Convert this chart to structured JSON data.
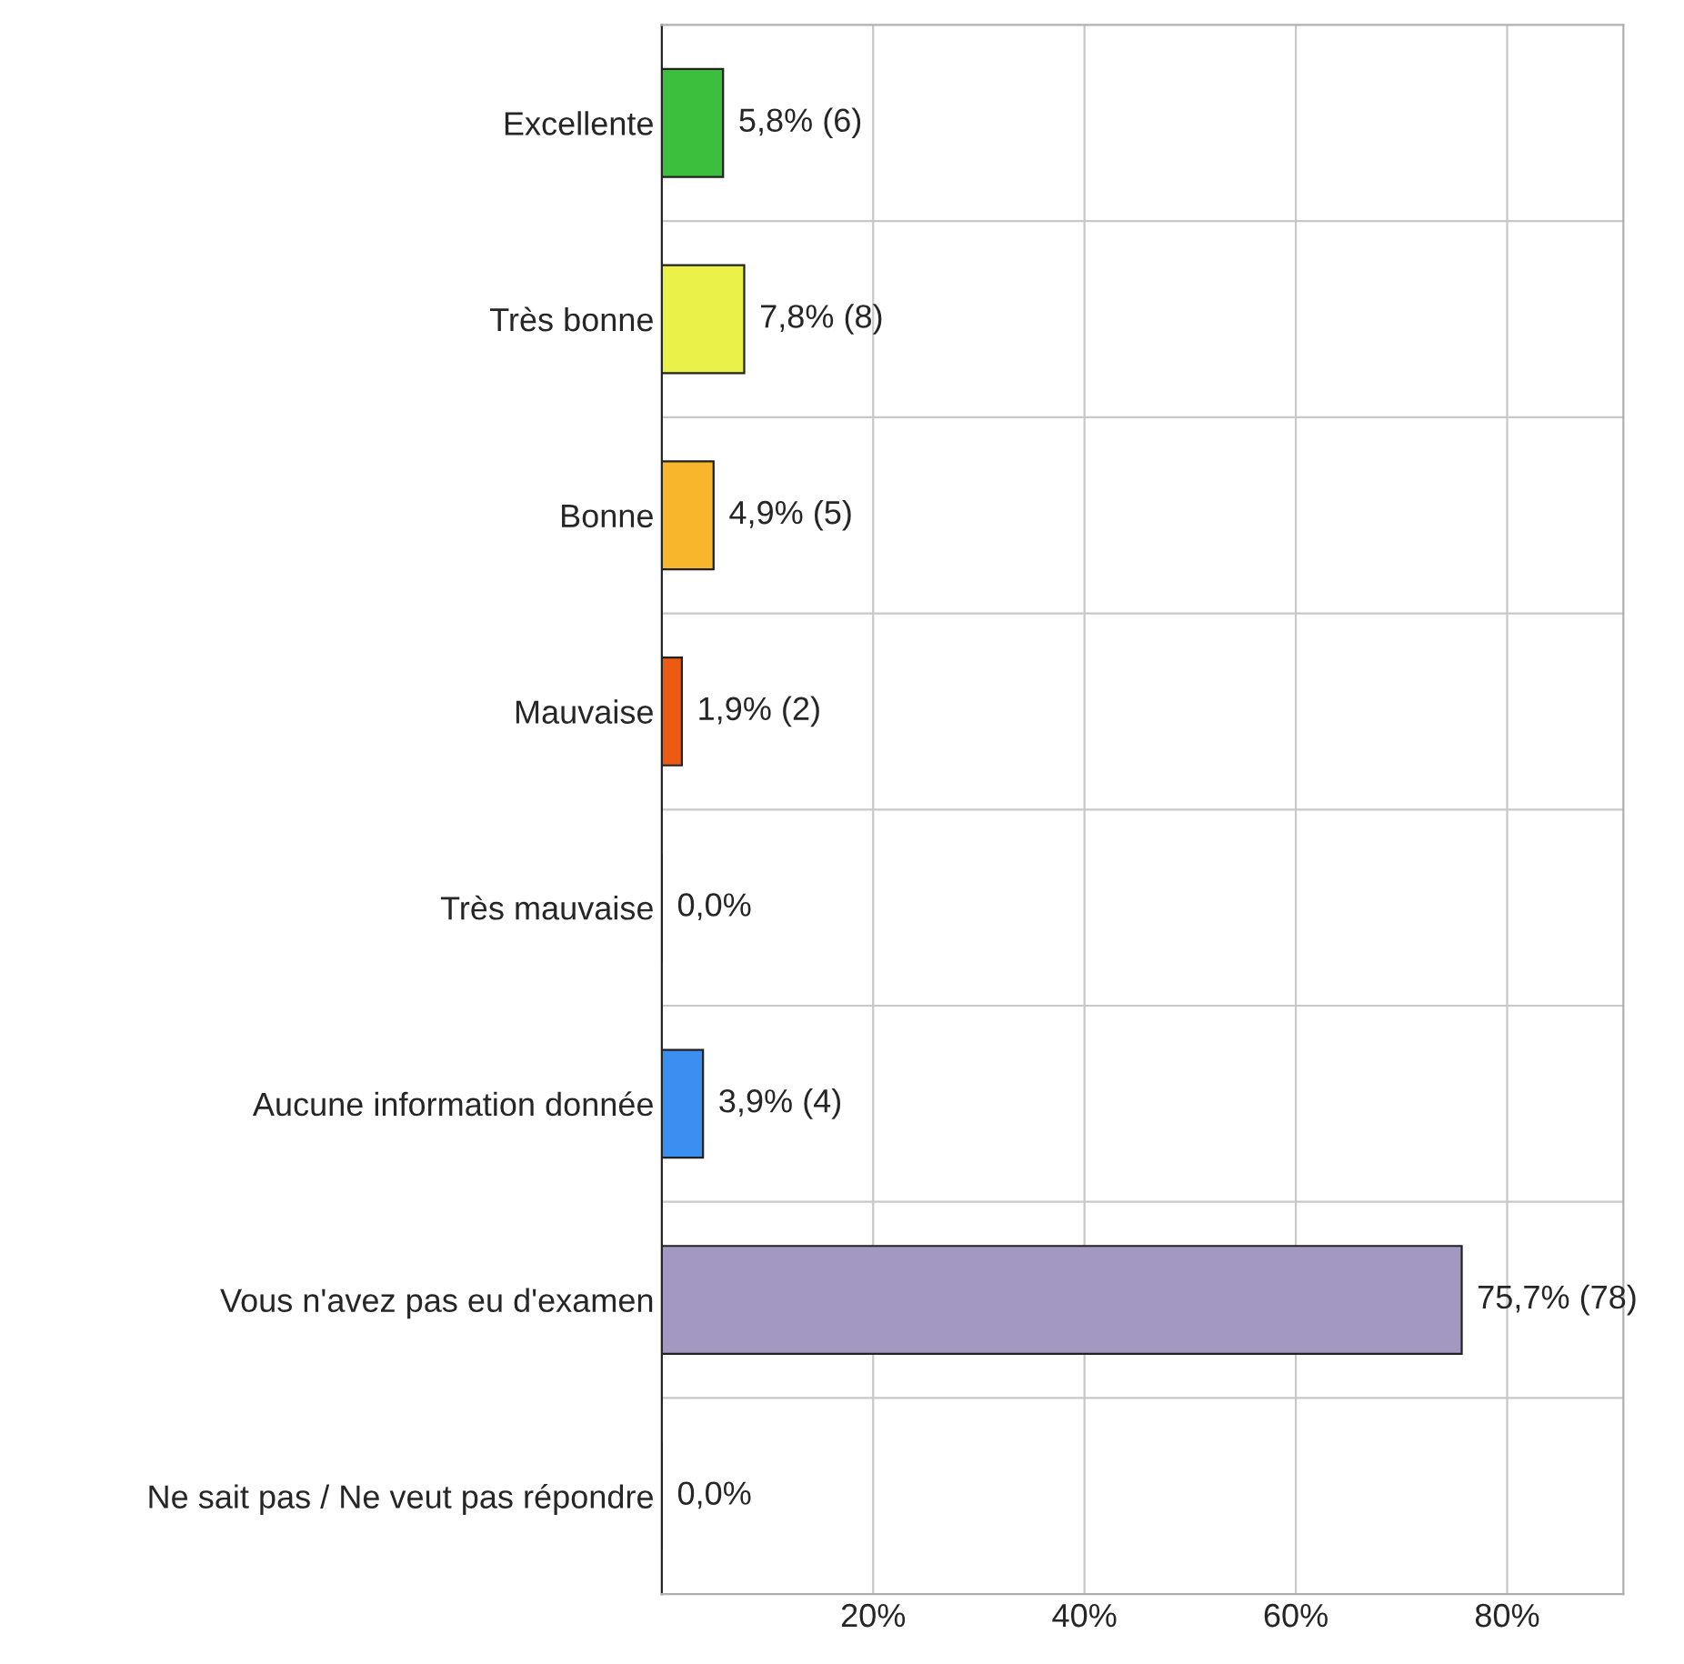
{
  "chart_data": {
    "type": "bar",
    "orientation": "horizontal",
    "categories": [
      "Excellente",
      "Très bonne",
      "Bonne",
      "Mauvaise",
      "Très mauvaise",
      "Aucune information donnée",
      "Vous n'avez pas eu d'examen",
      "Ne sait pas / Ne veut pas répondre"
    ],
    "values": [
      5.8,
      7.8,
      4.9,
      1.9,
      0.0,
      3.9,
      75.7,
      0.0
    ],
    "colors": [
      "#3cbf3c",
      "#eaf24a",
      "#f7b62c",
      "#ec5a14",
      "#222222",
      "#3a8ff0",
      "#a398c2",
      "#222222"
    ],
    "value_labels": [
      "5,8% (6)",
      "7,8% (8)",
      "4,9% (5)",
      "1,9% (2)",
      "0,0%",
      "3,9% (4)",
      "75,7% (78)",
      "0,0%"
    ],
    "xlim": [
      0,
      91
    ],
    "xticks": [
      {
        "value": 20,
        "label": "20%"
      },
      {
        "value": 40,
        "label": "40%"
      },
      {
        "value": 60,
        "label": "60%"
      },
      {
        "value": 80,
        "label": "80%"
      }
    ],
    "grid": true
  }
}
